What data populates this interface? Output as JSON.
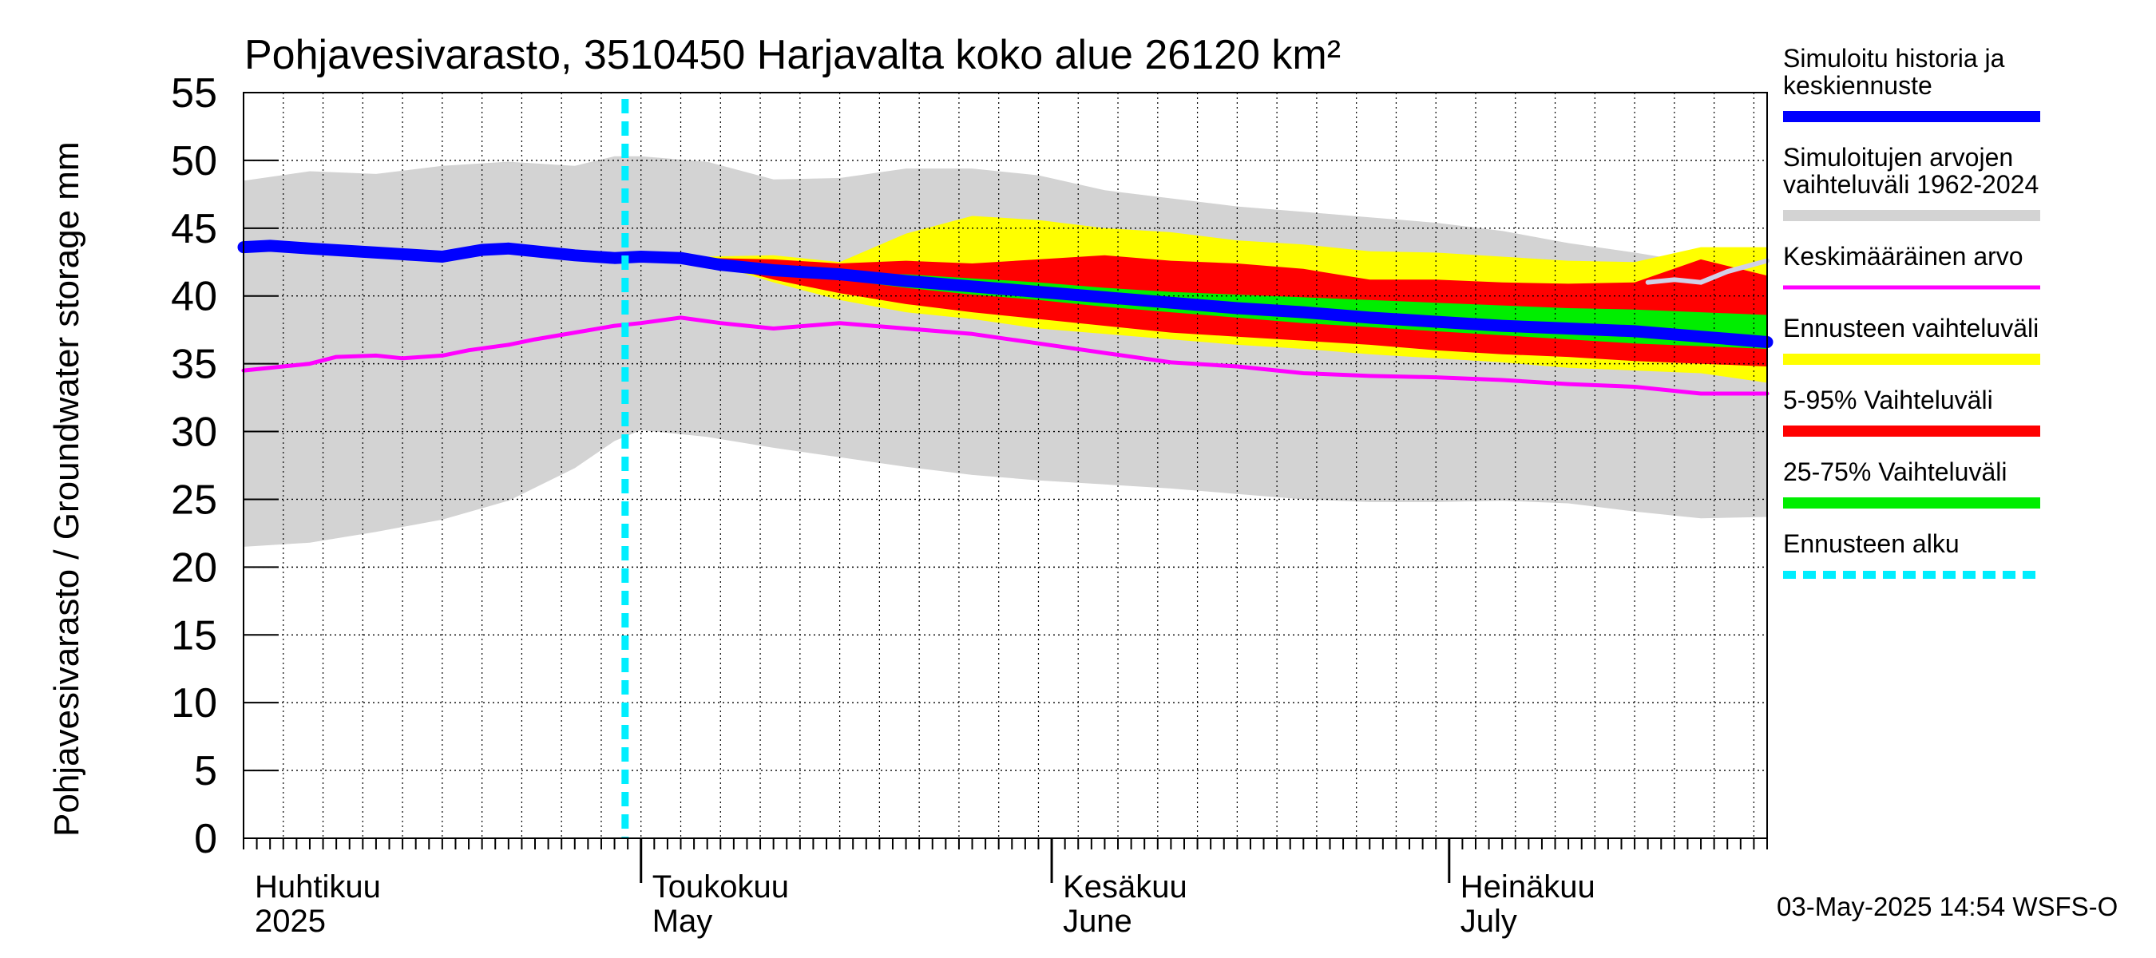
{
  "chart_data": {
    "type": "area",
    "title": "Pohjavesivarasto, 3510450 Harjavalta koko alue 26120 km²",
    "ylabel": "Pohjavesivarasto / Groundwater storage   mm",
    "ylim": [
      0,
      55
    ],
    "yticks": [
      0,
      5,
      10,
      15,
      20,
      25,
      30,
      35,
      40,
      45,
      50,
      55
    ],
    "xlim": [
      0,
      115
    ],
    "grid": true,
    "forecast_start_day": 28.8,
    "month_labels": [
      {
        "day": 0,
        "fi": "Huhtikuu",
        "en": "2025"
      },
      {
        "day": 30,
        "fi": "Toukokuu",
        "en": "May"
      },
      {
        "day": 61,
        "fi": "Kesäkuu",
        "en": "June"
      },
      {
        "day": 91,
        "fi": "Heinäkuu",
        "en": "July"
      }
    ],
    "month_boundaries": [
      30,
      61,
      91
    ],
    "footer": "03-May-2025 14:54 WSFS-O",
    "legend": [
      {
        "label_lines": [
          "Simuloitu historia ja",
          "keskiennuste"
        ],
        "color": "#0000ff",
        "style": "solid"
      },
      {
        "label_lines": [
          "Simuloitujen arvojen",
          "vaihteluväli 1962-2024"
        ],
        "color": "#d3d3d3",
        "style": "solid"
      },
      {
        "label_lines": [
          "Keskimääräinen arvo"
        ],
        "color": "#ff00ff",
        "style": "thin"
      },
      {
        "label_lines": [
          "Ennusteen vaihteluväli"
        ],
        "color": "#ffff00",
        "style": "solid"
      },
      {
        "label_lines": [
          "5-95% Vaihteluväli"
        ],
        "color": "#ff0000",
        "style": "solid"
      },
      {
        "label_lines": [
          "25-75% Vaihteluväli"
        ],
        "color": "#00ee00",
        "style": "solid"
      },
      {
        "label_lines": [
          "Ennusteen alku"
        ],
        "color": "#00eeff",
        "style": "dashed"
      }
    ],
    "series": [
      {
        "name": "Simuloitujen arvojen vaihteluväli 1962-2024",
        "color": "#d3d3d3",
        "x": [
          0,
          5,
          10,
          15,
          20,
          25,
          28,
          30,
          35,
          40,
          45,
          50,
          55,
          60,
          65,
          70,
          75,
          80,
          85,
          90,
          95,
          100,
          105,
          110,
          115
        ],
        "upper": [
          48.5,
          49.2,
          49.0,
          49.6,
          49.9,
          49.6,
          50.3,
          50.3,
          49.9,
          48.6,
          48.7,
          49.4,
          49.4,
          48.9,
          47.8,
          47.2,
          46.6,
          46.2,
          45.8,
          45.4,
          44.8,
          43.9,
          43.2,
          42.4,
          42.0
        ],
        "lower": [
          21.5,
          21.8,
          22.6,
          23.5,
          24.9,
          27.3,
          29.3,
          30.1,
          29.6,
          28.8,
          28.1,
          27.4,
          26.8,
          26.4,
          26.1,
          25.8,
          25.4,
          25.0,
          24.8,
          24.8,
          24.9,
          24.7,
          24.1,
          23.6,
          23.7
        ]
      },
      {
        "name": "Ennusteen vaihteluväli",
        "color": "#ffff00",
        "x": [
          28.8,
          35,
          40,
          45,
          50,
          55,
          60,
          65,
          70,
          75,
          80,
          85,
          90,
          95,
          100,
          105,
          110,
          115
        ],
        "upper": [
          43.0,
          42.9,
          43.0,
          42.5,
          44.6,
          45.9,
          45.6,
          45.0,
          44.7,
          44.1,
          43.8,
          43.3,
          43.2,
          42.9,
          42.6,
          42.5,
          43.6,
          43.6
        ],
        "lower": [
          43.0,
          42.5,
          41.0,
          39.7,
          38.8,
          38.3,
          37.6,
          37.2,
          36.8,
          36.4,
          36.1,
          35.7,
          35.4,
          35.1,
          34.7,
          34.5,
          34.3,
          33.6
        ]
      },
      {
        "name": "5-95% Vaihteluväli",
        "color": "#ff0000",
        "x": [
          28.8,
          35,
          40,
          45,
          50,
          55,
          60,
          65,
          70,
          75,
          80,
          85,
          90,
          95,
          100,
          105,
          110,
          115
        ],
        "upper": [
          43.0,
          42.8,
          42.7,
          42.4,
          42.6,
          42.4,
          42.7,
          43.0,
          42.6,
          42.4,
          42.0,
          41.2,
          41.2,
          41.0,
          40.9,
          41.0,
          42.7,
          41.5
        ],
        "lower": [
          43.0,
          42.5,
          41.2,
          40.2,
          39.4,
          38.8,
          38.3,
          37.8,
          37.3,
          37.0,
          36.7,
          36.4,
          36.0,
          35.7,
          35.5,
          35.2,
          35.0,
          34.8
        ]
      },
      {
        "name": "25-75% Vaihteluväli",
        "color": "#00ee00",
        "x": [
          28.8,
          35,
          40,
          45,
          50,
          55,
          60,
          65,
          70,
          75,
          80,
          85,
          90,
          95,
          100,
          105,
          110,
          115
        ],
        "upper": [
          43.0,
          42.7,
          42.1,
          41.7,
          41.6,
          41.3,
          41.0,
          40.6,
          40.3,
          40.1,
          39.9,
          39.7,
          39.5,
          39.3,
          39.1,
          39.0,
          38.8,
          38.6
        ],
        "lower": [
          43.0,
          42.6,
          41.8,
          41.2,
          40.6,
          40.1,
          39.7,
          39.2,
          38.8,
          38.4,
          38.0,
          37.7,
          37.4,
          37.1,
          36.8,
          36.5,
          36.3,
          36.1
        ]
      },
      {
        "name": "Keskimääräinen arvo",
        "color": "#ff00ff",
        "x": [
          0,
          3,
          5,
          7,
          10,
          12,
          15,
          17,
          20,
          22,
          25,
          28,
          30,
          33,
          36,
          40,
          45,
          50,
          55,
          60,
          65,
          70,
          75,
          80,
          85,
          90,
          95,
          100,
          105,
          110,
          115
        ],
        "y": [
          34.5,
          34.8,
          35.0,
          35.5,
          35.6,
          35.4,
          35.6,
          36.0,
          36.4,
          36.8,
          37.3,
          37.8,
          38.0,
          38.4,
          38.0,
          37.6,
          38.0,
          37.6,
          37.2,
          36.5,
          35.8,
          35.1,
          34.8,
          34.3,
          34.1,
          34.0,
          33.8,
          33.5,
          33.3,
          32.8,
          32.8
        ]
      },
      {
        "name": "Simuloitu historia ja keskiennuste",
        "color": "#0000ff",
        "x": [
          0,
          2,
          5,
          10,
          15,
          18,
          20,
          25,
          28,
          30,
          33,
          36,
          40,
          45,
          50,
          55,
          60,
          65,
          70,
          75,
          80,
          85,
          90,
          95,
          100,
          105,
          110,
          115
        ],
        "y": [
          43.6,
          43.7,
          43.5,
          43.2,
          42.9,
          43.4,
          43.5,
          43.0,
          42.8,
          42.9,
          42.8,
          42.3,
          41.9,
          41.6,
          41.1,
          40.7,
          40.3,
          39.9,
          39.5,
          39.1,
          38.8,
          38.4,
          38.1,
          37.8,
          37.6,
          37.4,
          37.0,
          36.6
        ]
      },
      {
        "name": "Simuloitu historia (vaalea)",
        "color": "#d0d0e8",
        "x": [
          106,
          108,
          110,
          112,
          115
        ],
        "y": [
          41.0,
          41.2,
          41.0,
          41.8,
          42.6
        ]
      }
    ]
  }
}
